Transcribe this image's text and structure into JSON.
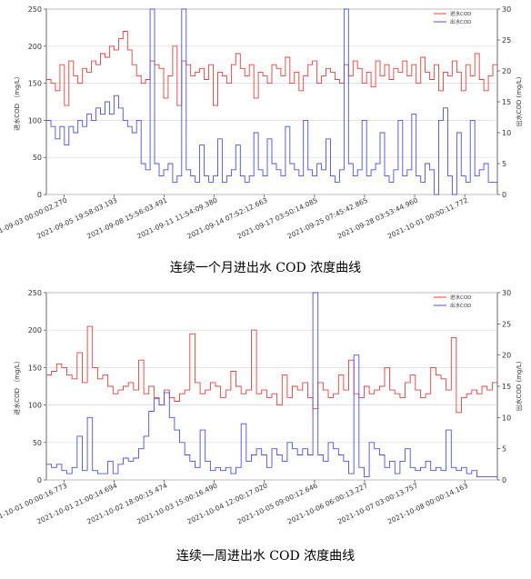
{
  "chart_data": [
    {
      "type": "line",
      "caption": "连续一个月进出水 COD 浓度曲线",
      "ylabel_left": "进水COD （mg/L）",
      "ylabel_right": "出水COD (mg/L)",
      "ylim_left": [
        0,
        250
      ],
      "ylim_right": [
        0,
        30
      ],
      "yticks_left": [
        "0",
        "50",
        "100",
        "150",
        "200",
        "250"
      ],
      "yticks_right": [
        "0",
        "5",
        "10",
        "15",
        "20",
        "25",
        "30"
      ],
      "xticks": [
        "2021-09-03 00:00:02.270",
        "2021-09-05 19:58:03.193",
        "2021-09-08 15:56:03.491",
        "2021-09-11 11:54:09.380",
        "2021-09-14 07:52:12.663",
        "2021-09-17 03:50:14.085",
        "2021-09-25 07:45:42.865",
        "2021-09-28 03:53:44.960",
        "2021-10-01 00:00:11.772"
      ],
      "grid": true,
      "legend_position": "top-right",
      "series": [
        {
          "name": "进水COD",
          "color": "#e0413f",
          "axis": "left",
          "values": [
            155,
            150,
            140,
            175,
            120,
            180,
            160,
            150,
            170,
            165,
            180,
            175,
            190,
            185,
            200,
            195,
            210,
            220,
            195,
            175,
            160,
            150,
            155,
            180,
            175,
            170,
            130,
            160,
            200,
            120,
            180,
            175,
            160,
            165,
            170,
            155,
            175,
            120,
            165,
            160,
            150,
            175,
            190,
            170,
            160,
            175,
            130,
            165,
            160,
            150,
            175,
            170,
            160,
            185,
            150,
            165,
            140,
            160,
            175,
            180,
            150,
            160,
            170,
            165,
            155,
            150,
            175,
            160,
            180,
            170,
            150,
            165,
            145,
            180,
            160,
            175,
            155,
            170,
            165,
            180,
            160,
            175,
            150,
            185,
            165,
            155,
            175,
            140,
            165,
            160,
            180,
            165,
            140,
            175,
            160,
            190,
            155,
            140,
            160,
            175
          ]
        },
        {
          "name": "出水COD",
          "color": "#4b52d9",
          "axis": "right",
          "values": [
            12,
            11,
            9,
            11,
            8,
            11,
            10,
            12,
            11,
            13,
            12,
            14,
            13,
            15,
            13,
            16,
            14,
            12,
            11,
            10,
            12,
            5,
            4,
            30,
            5,
            3,
            4,
            5,
            2,
            3,
            30,
            4,
            3,
            2,
            8,
            3,
            2,
            3,
            9,
            2,
            3,
            4,
            8,
            3,
            2,
            3,
            10,
            4,
            3,
            9,
            5,
            4,
            3,
            11,
            5,
            4,
            3,
            12,
            4,
            3,
            5,
            4,
            9,
            3,
            2,
            4,
            30,
            5,
            3,
            4,
            12,
            3,
            4,
            5,
            10,
            3,
            2,
            4,
            12,
            3,
            4,
            13,
            3,
            2,
            5,
            4,
            0,
            12,
            14,
            3,
            0,
            10,
            3,
            2,
            12,
            3,
            4,
            5,
            2,
            2
          ]
        }
      ]
    },
    {
      "type": "line",
      "caption": "连续一周进出水 COD 浓度曲线",
      "ylabel_left": "进水COD （mg/L）",
      "ylabel_right": "出水COD (mg/L)",
      "ylim_left": [
        0,
        250
      ],
      "ylim_right": [
        0,
        30
      ],
      "yticks_left": [
        "0",
        "50",
        "100",
        "150",
        "200",
        "250"
      ],
      "yticks_right": [
        "0",
        "5",
        "10",
        "15",
        "20",
        "25",
        "30"
      ],
      "xticks": [
        "2021-10-01 00:00:16.773",
        "2021-10-01 21:00:14.694",
        "2021-10-02 18:00:15.474",
        "2021-10-03 15:00:16.490",
        "2021-10-04 12:00:17.020",
        "2021-10-05 09:00:12.646",
        "2021-10-06 06:00:13.227",
        "2021-10-07 03:00:13.757",
        "2021-10-08 00:00:14.163"
      ],
      "grid": true,
      "legend_position": "top-right",
      "series": [
        {
          "name": "进水COD",
          "color": "#e0413f",
          "axis": "left",
          "values": [
            140,
            145,
            155,
            150,
            140,
            135,
            170,
            130,
            205,
            150,
            135,
            140,
            125,
            115,
            120,
            125,
            130,
            120,
            160,
            115,
            125,
            110,
            100,
            120,
            110,
            105,
            115,
            120,
            195,
            130,
            115,
            120,
            130,
            125,
            110,
            120,
            145,
            125,
            115,
            120,
            200,
            115,
            120,
            110,
            115,
            100,
            140,
            110,
            125,
            120,
            130,
            110,
            95,
            130,
            120,
            110,
            115,
            140,
            120,
            160,
            115,
            110,
            125,
            115,
            120,
            125,
            150,
            120,
            115,
            110,
            130,
            140,
            120,
            110,
            115,
            150,
            140,
            135,
            120,
            190,
            90,
            110,
            115,
            120,
            115,
            125,
            120,
            130
          ]
        },
        {
          "name": "出水COD",
          "color": "#4b52d9",
          "axis": "right",
          "values": [
            2.5,
            2,
            2.5,
            1.5,
            1,
            2,
            7,
            1.5,
            10,
            1.5,
            1,
            1,
            3,
            1,
            2.5,
            3.5,
            3,
            3.5,
            5,
            7,
            11,
            13,
            12,
            14,
            10,
            8,
            6,
            4,
            3,
            2,
            8,
            3,
            1.5,
            2,
            1.5,
            2,
            1,
            2,
            9,
            3,
            4,
            5,
            4,
            2,
            5,
            4,
            3,
            6,
            5,
            4,
            5,
            4,
            30,
            4,
            3,
            6,
            5,
            4,
            3,
            1,
            20,
            2,
            0.5,
            6,
            5,
            4,
            2,
            3,
            1,
            3,
            5,
            2,
            1.5,
            2,
            3,
            1.5,
            2,
            1.5,
            8,
            2,
            1.5,
            2,
            1,
            1.5,
            0.5,
            0.5,
            0.5,
            0.5
          ]
        }
      ]
    }
  ]
}
